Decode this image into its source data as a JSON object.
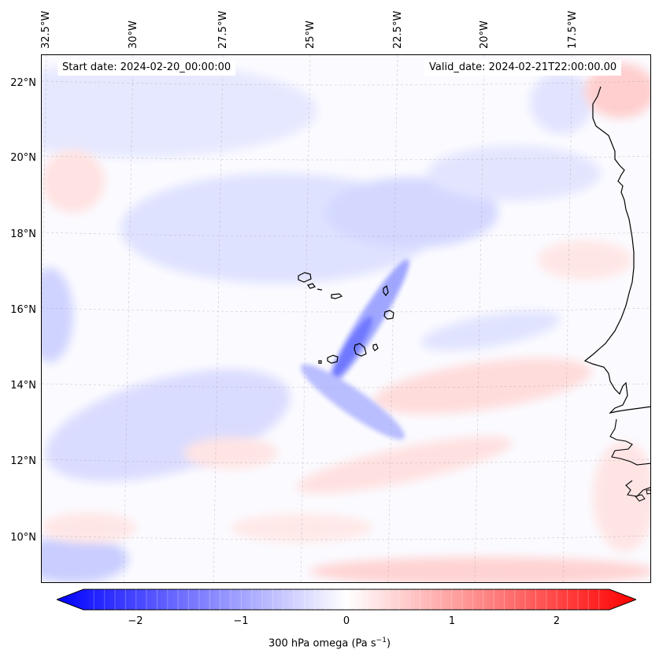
{
  "map": {
    "start_date": "Start date: 2024-02-20_00:00:00",
    "valid_date": "Valid_date: 2024-02-21T22:00:00.00",
    "lon_labels": [
      "32.5°W",
      "30°W",
      "27.5°W",
      "25°W",
      "22.5°W",
      "20°W",
      "17.5°W"
    ],
    "lat_labels": [
      "22°N",
      "20°N",
      "18°N",
      "16°N",
      "14°N",
      "12°N",
      "10°N"
    ],
    "extent": {
      "lon_min": -33.0,
      "lon_max": -15.8,
      "lat_min": 8.8,
      "lat_max": 22.8
    },
    "variable": "300 hPa omega",
    "coastline": "West Africa (Senegal, Mauritania, Gambia, Guinea-Bissau)",
    "islands": "Cabo Verde"
  },
  "colorbar": {
    "label_main": "300 hPa omega (Pa s",
    "label_sup": "−1",
    "label_end": ")",
    "ticks": [
      "−2",
      "−1",
      "0",
      "1",
      "2"
    ],
    "tick_values": [
      -2,
      -1,
      0,
      1,
      2
    ],
    "range": [
      -2.5,
      2.5
    ],
    "colormap": "bwr",
    "color_min": "#0000ff",
    "color_mid": "#ffffff",
    "color_max": "#ff0000"
  }
}
